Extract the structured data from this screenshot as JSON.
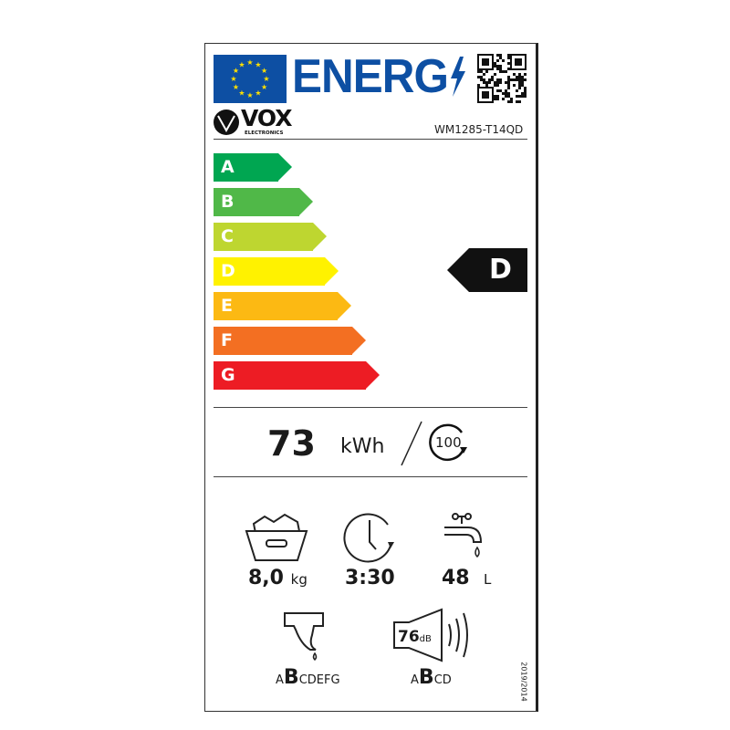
{
  "header": {
    "energy_title": "ENERG",
    "brand": "VOX",
    "brand_sub": "ELECTRONICS",
    "model": "WM1285-T14QD"
  },
  "scale": {
    "classes": [
      {
        "letter": "A",
        "color": "#00a651"
      },
      {
        "letter": "B",
        "color": "#50b848"
      },
      {
        "letter": "C",
        "color": "#bed630"
      },
      {
        "letter": "D",
        "color": "#fff200"
      },
      {
        "letter": "E",
        "color": "#fcb913"
      },
      {
        "letter": "F",
        "color": "#f36f22"
      },
      {
        "letter": "G",
        "color": "#ed1c24"
      }
    ],
    "rated_class": "D"
  },
  "energy": {
    "value": "73",
    "unit": "kWh",
    "cycles": "100"
  },
  "specs": {
    "capacity": "8,0",
    "capacity_unit": "kg",
    "duration": "3:30",
    "water": "48",
    "water_unit": "L",
    "spin_class_pre": "A",
    "spin_class": "B",
    "spin_class_post": "CDEFG",
    "noise": "76",
    "noise_unit": "dB",
    "noise_class_pre": "A",
    "noise_class": "B",
    "noise_class_post": "CD"
  },
  "regulation": "2019/2014"
}
